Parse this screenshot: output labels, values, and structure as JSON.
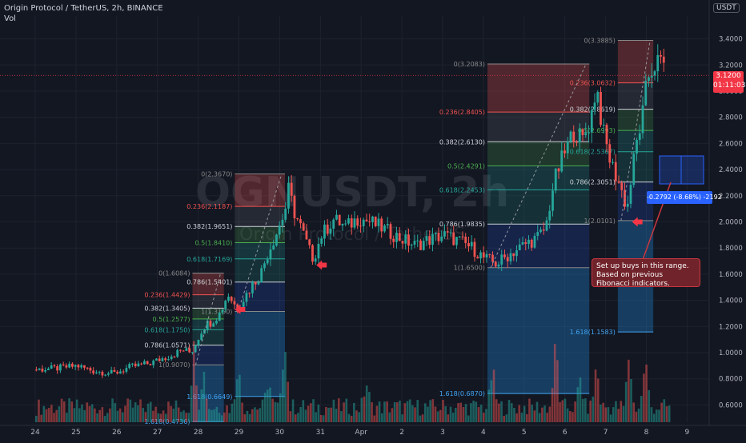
{
  "header": {
    "symbol_line": "Origin Protocol / TetherUS, 2h, BINANCE",
    "vol_label": "Vol"
  },
  "currency": "USDT",
  "watermark": {
    "main": "OGNUSDT, 2h",
    "sub": "Origin Protocol / TetherUS"
  },
  "last_price": {
    "value": "3.1200",
    "countdown": "01:11:03"
  },
  "note_text": "Set up buys in this range. Based on previous Fibonacci indicators.",
  "measure_text": "-0.2792 (-8.68%) -2192",
  "colors": {
    "up": "#26a69a",
    "down": "#ef5350",
    "bg": "#131722",
    "grid": "#1e222d",
    "price_line": "#f23645"
  },
  "chart_data": {
    "type": "candlestick",
    "x_labels": [
      "24",
      "25",
      "26",
      "27",
      "28",
      "29",
      "30",
      "31",
      "Apr",
      "2",
      "3",
      "4",
      "5",
      "6",
      "7",
      "8",
      "9"
    ],
    "y_ticks": [
      "3.4000",
      "3.2000",
      "3.0000",
      "2.8000",
      "2.6000",
      "2.4000",
      "2.2000",
      "2.0000",
      "1.8000",
      "1.6000",
      "1.4000",
      "1.2000",
      "1.0000",
      "0.8000",
      "0.6000"
    ],
    "y_tick_values": [
      3.4,
      3.2,
      3.0,
      2.8,
      2.6,
      2.4,
      2.2,
      2.0,
      1.8,
      1.6,
      1.4,
      1.2,
      1.0,
      0.8,
      0.6
    ],
    "ylim": [
      0.5,
      3.7
    ],
    "fib_sets": [
      {
        "name": "fib-a",
        "day_start": 3.86,
        "day_end": 4.63,
        "levels": [
          {
            "label": "0(1.6084)",
            "value": 1.6084,
            "color": "#888888"
          },
          {
            "label": "0.236(1.4429)",
            "value": 1.4429,
            "color": "#ef5350"
          },
          {
            "label": "0.382(1.3405)",
            "value": 1.3405,
            "color": "#cfd2d9"
          },
          {
            "label": "0.5(1.2577)",
            "value": 1.2577,
            "color": "#4caf50"
          },
          {
            "label": "0.618(1.1750)",
            "value": 1.175,
            "color": "#26a69a"
          },
          {
            "label": "0.786(1.0571)",
            "value": 1.0571,
            "color": "#cfd2d9"
          },
          {
            "label": "1(0.9070)",
            "value": 0.907,
            "color": "#888888"
          },
          {
            "label": "1.618(0.4736)",
            "value": 0.4736,
            "color": "#42a5f5"
          }
        ]
      },
      {
        "name": "fib-b",
        "day_start": 4.9,
        "day_end": 6.13,
        "levels": [
          {
            "label": "0(2.3670)",
            "value": 2.367,
            "color": "#888888"
          },
          {
            "label": "0.236(2.1187)",
            "value": 2.1187,
            "color": "#ef5350"
          },
          {
            "label": "0.382(1.9651)",
            "value": 1.9651,
            "color": "#cfd2d9"
          },
          {
            "label": "0.5(1.8410)",
            "value": 1.841,
            "color": "#4caf50"
          },
          {
            "label": "0.618(1.7169)",
            "value": 1.7169,
            "color": "#26a69a"
          },
          {
            "label": "0.786(1.5401)",
            "value": 1.5401,
            "color": "#cfd2d9"
          },
          {
            "label": "1(1.3150)",
            "value": 1.315,
            "color": "#888888"
          },
          {
            "label": "1.618(0.6649)",
            "value": 0.6649,
            "color": "#42a5f5"
          }
        ]
      },
      {
        "name": "fib-c",
        "day_start": 11.1,
        "day_end": 13.6,
        "levels": [
          {
            "label": "0(3.2083)",
            "value": 3.2083,
            "color": "#888888"
          },
          {
            "label": "0.236(2.8405)",
            "value": 2.8405,
            "color": "#ef5350"
          },
          {
            "label": "0.382(2.6130)",
            "value": 2.613,
            "color": "#cfd2d9"
          },
          {
            "label": "0.5(2.4291)",
            "value": 2.4291,
            "color": "#4caf50"
          },
          {
            "label": "0.618(2.2453)",
            "value": 2.2453,
            "color": "#26a69a"
          },
          {
            "label": "0.786(1.9835)",
            "value": 1.9835,
            "color": "#cfd2d9"
          },
          {
            "label": "1(1.6500)",
            "value": 1.65,
            "color": "#888888"
          },
          {
            "label": "1.618(0.6870)",
            "value": 0.687,
            "color": "#42a5f5"
          }
        ]
      },
      {
        "name": "fib-d",
        "day_start": 14.3,
        "day_end": 15.17,
        "levels": [
          {
            "label": "0(3.3885)",
            "value": 3.3885,
            "color": "#888888"
          },
          {
            "label": "0.236(3.0632)",
            "value": 3.0632,
            "color": "#ef5350"
          },
          {
            "label": "0.382(2.8619)",
            "value": 2.8619,
            "color": "#cfd2d9"
          },
          {
            "label": "0.5(2.6993)",
            "value": 2.6993,
            "color": "#4caf50"
          },
          {
            "label": "0.618(2.5367)",
            "value": 2.5367,
            "color": "#26a69a"
          },
          {
            "label": "0.786(2.3051)",
            "value": 2.3051,
            "color": "#cfd2d9"
          },
          {
            "label": "1(2.0101)",
            "value": 2.0101,
            "color": "#888888"
          },
          {
            "label": "1.618(1.1583)",
            "value": 1.1583,
            "color": "#42a5f5"
          }
        ]
      }
    ],
    "price_path": [
      [
        0.0,
        0.87
      ],
      [
        0.5,
        0.88
      ],
      [
        1.0,
        0.9
      ],
      [
        1.4,
        0.86
      ],
      [
        1.9,
        0.84
      ],
      [
        2.3,
        0.89
      ],
      [
        2.8,
        0.92
      ],
      [
        3.3,
        0.98
      ],
      [
        3.6,
        1.02
      ],
      [
        3.8,
        1.0
      ],
      [
        3.95,
        1.1
      ],
      [
        4.1,
        1.2
      ],
      [
        4.3,
        1.24
      ],
      [
        4.5,
        1.3
      ],
      [
        4.7,
        1.45
      ],
      [
        4.9,
        1.35
      ],
      [
        5.1,
        1.42
      ],
      [
        5.3,
        1.52
      ],
      [
        5.5,
        1.6
      ],
      [
        5.7,
        1.78
      ],
      [
        5.9,
        1.92
      ],
      [
        6.1,
        2.08
      ],
      [
        6.2,
        2.26
      ],
      [
        6.3,
        2.1
      ],
      [
        6.5,
        1.95
      ],
      [
        6.7,
        1.78
      ],
      [
        6.8,
        1.72
      ],
      [
        7.0,
        1.9
      ],
      [
        7.3,
        2.02
      ],
      [
        7.6,
        1.96
      ],
      [
        7.9,
        2.03
      ],
      [
        8.2,
        2.0
      ],
      [
        8.5,
        1.95
      ],
      [
        8.9,
        1.88
      ],
      [
        9.3,
        1.82
      ],
      [
        9.6,
        1.86
      ],
      [
        10.0,
        1.9
      ],
      [
        10.4,
        1.85
      ],
      [
        10.7,
        1.8
      ],
      [
        11.0,
        1.72
      ],
      [
        11.3,
        1.68
      ],
      [
        11.6,
        1.75
      ],
      [
        12.0,
        1.83
      ],
      [
        12.3,
        1.88
      ],
      [
        12.5,
        1.95
      ],
      [
        12.7,
        2.3
      ],
      [
        12.9,
        2.48
      ],
      [
        13.2,
        2.7
      ],
      [
        13.4,
        2.62
      ],
      [
        13.6,
        2.78
      ],
      [
        13.75,
        3.05
      ],
      [
        13.9,
        2.7
      ],
      [
        14.1,
        2.45
      ],
      [
        14.3,
        2.3
      ],
      [
        14.5,
        2.1
      ],
      [
        14.7,
        2.55
      ],
      [
        14.9,
        2.85
      ],
      [
        15.0,
        3.1
      ],
      [
        15.2,
        3.22
      ],
      [
        15.4,
        3.2
      ]
    ],
    "candle_count": 210,
    "volume_spikes": [
      {
        "x": 3.87,
        "v": 0.85
      },
      {
        "x": 4.1,
        "v": 0.55
      },
      {
        "x": 4.95,
        "v": 0.6
      },
      {
        "x": 5.7,
        "v": 0.4
      },
      {
        "x": 6.1,
        "v": 1.0
      },
      {
        "x": 8.1,
        "v": 0.35
      },
      {
        "x": 11.2,
        "v": 0.55
      },
      {
        "x": 12.75,
        "v": 0.95
      },
      {
        "x": 13.35,
        "v": 0.4
      },
      {
        "x": 14.55,
        "v": 0.75
      },
      {
        "x": 14.95,
        "v": 0.7
      },
      {
        "x": 13.75,
        "v": 0.6
      }
    ],
    "markers": [
      {
        "x": 4.9,
        "y": 1.33,
        "color": "#f23645"
      },
      {
        "x": 6.9,
        "y": 1.67,
        "color": "#f23645"
      },
      {
        "x": 14.65,
        "y": 2.0,
        "color": "#f23645"
      }
    ]
  }
}
